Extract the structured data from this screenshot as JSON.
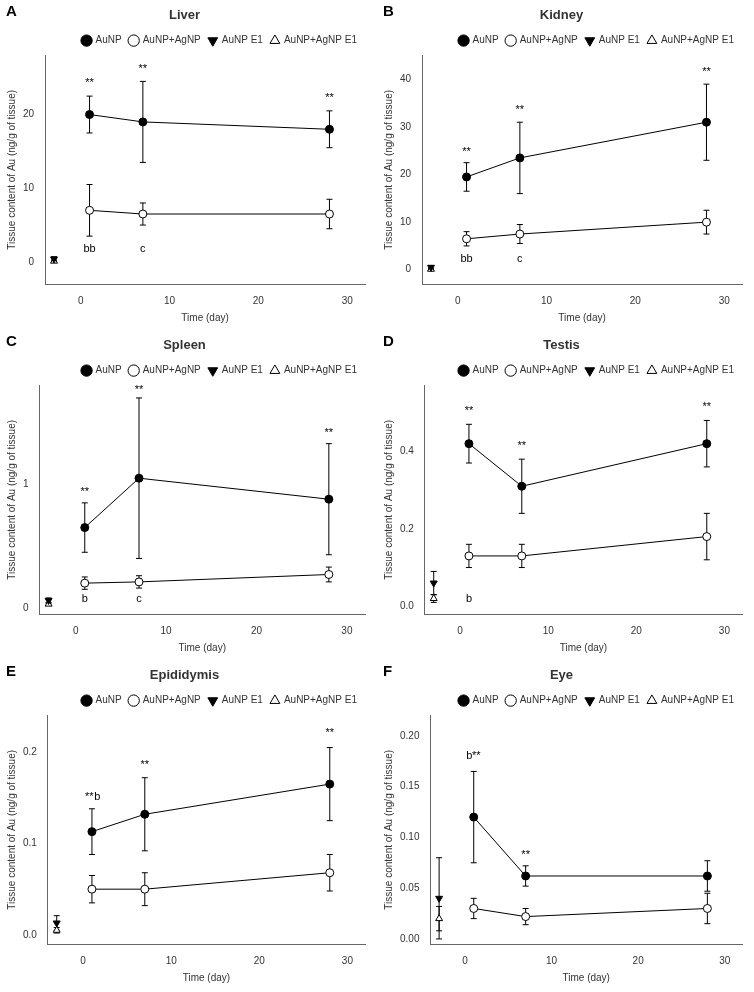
{
  "chart_data": [
    {
      "type": "line",
      "panel_label": "A",
      "title": "Liver",
      "xlabel": "Time (day)",
      "ylabel": "Tissue content of Au (ng/g of tissue)",
      "xlim": [
        -4,
        32
      ],
      "ylim": [
        -3,
        28
      ],
      "xticks": [
        0,
        10,
        20,
        30
      ],
      "yticks": [
        0,
        10,
        20
      ],
      "grid": false,
      "legend": "upper right",
      "series": [
        {
          "name": "AuNP",
          "x": [
            1,
            7,
            28
          ],
          "values": [
            20.0,
            19.0,
            18.0
          ],
          "yerr": [
            2.5,
            5.5,
            2.5
          ],
          "marker": "filled_circle",
          "line_style": "solid",
          "color": "#000000"
        },
        {
          "name": "AuNP+AgNP",
          "x": [
            1,
            7,
            28
          ],
          "values": [
            7.0,
            6.5,
            6.5
          ],
          "yerr": [
            3.5,
            1.5,
            2.0
          ],
          "marker": "open_circle",
          "line_style": "solid",
          "color": "#000000"
        },
        {
          "name": "AuNP E1",
          "x": [
            -3
          ],
          "values": [
            0.4
          ],
          "yerr": [
            0.3
          ],
          "marker": "filled_triangle_down",
          "line_style": "none",
          "color": "#000000"
        },
        {
          "name": "AuNP+AgNP E1",
          "x": [
            -3
          ],
          "values": [
            0.1
          ],
          "yerr": [
            0.15
          ],
          "marker": "open_triangle_up",
          "line_style": "none",
          "color": "#000000"
        }
      ],
      "annotations": [
        {
          "text": "**",
          "x": 1,
          "y": 23.5
        },
        {
          "text": "**",
          "x": 7,
          "y": 25.5
        },
        {
          "text": "**",
          "x": 28,
          "y": 21.5
        },
        {
          "text": "bb",
          "x": 1,
          "y": 1.0
        },
        {
          "text": "c",
          "x": 7,
          "y": 1.0
        }
      ]
    },
    {
      "type": "line",
      "panel_label": "B",
      "title": "Kidney",
      "xlabel": "Time (day)",
      "ylabel": "Tissue content of Au (ng/g of tissue)",
      "xlim": [
        -4,
        32
      ],
      "ylim": [
        -3,
        45
      ],
      "xticks": [
        0,
        10,
        20,
        30
      ],
      "yticks": [
        0,
        10,
        20,
        30,
        40
      ],
      "grid": false,
      "legend": "upper right",
      "series": [
        {
          "name": "AuNP",
          "x": [
            1,
            7,
            28
          ],
          "values": [
            19.5,
            23.5,
            31.0
          ],
          "yerr": [
            3.0,
            7.5,
            8.0
          ],
          "marker": "filled_circle",
          "line_style": "solid",
          "color": "#000000"
        },
        {
          "name": "AuNP+AgNP",
          "x": [
            1,
            7,
            28
          ],
          "values": [
            6.5,
            7.5,
            10.0
          ],
          "yerr": [
            1.5,
            2.0,
            2.5
          ],
          "marker": "open_circle",
          "line_style": "solid",
          "color": "#000000"
        },
        {
          "name": "AuNP E1",
          "x": [
            -3
          ],
          "values": [
            0.5
          ],
          "yerr": [
            0.4
          ],
          "marker": "filled_triangle_down",
          "line_style": "none",
          "color": "#000000"
        },
        {
          "name": "AuNP+AgNP E1",
          "x": [
            -3
          ],
          "values": [
            0.1
          ],
          "yerr": [
            0.2
          ],
          "marker": "open_triangle_up",
          "line_style": "none",
          "color": "#000000"
        }
      ],
      "annotations": [
        {
          "text": "**",
          "x": 1,
          "y": 23.5
        },
        {
          "text": "**",
          "x": 7,
          "y": 32.5
        },
        {
          "text": "**",
          "x": 28,
          "y": 40.5
        },
        {
          "text": "bb",
          "x": 1,
          "y": 1.0
        },
        {
          "text": "c",
          "x": 7,
          "y": 1.0
        }
      ]
    },
    {
      "type": "line",
      "panel_label": "C",
      "title": "Spleen",
      "xlabel": "Time (day)",
      "ylabel": "Tissue content of Au (ng/g of tissue)",
      "xlim": [
        -4,
        32
      ],
      "ylim": [
        -0.05,
        1.8
      ],
      "xticks": [
        0,
        10,
        20,
        30
      ],
      "yticks": [
        0,
        1
      ],
      "grid": false,
      "legend": "upper right",
      "series": [
        {
          "name": "AuNP",
          "x": [
            1,
            7,
            28
          ],
          "values": [
            0.65,
            1.05,
            0.88
          ],
          "yerr": [
            0.2,
            0.65,
            0.45
          ],
          "marker": "filled_circle",
          "line_style": "solid",
          "color": "#000000"
        },
        {
          "name": "AuNP+AgNP",
          "x": [
            1,
            7,
            28
          ],
          "values": [
            0.2,
            0.21,
            0.27
          ],
          "yerr": [
            0.05,
            0.05,
            0.06
          ],
          "marker": "open_circle",
          "line_style": "solid",
          "color": "#000000"
        },
        {
          "name": "AuNP E1",
          "x": [
            -3
          ],
          "values": [
            0.06
          ],
          "yerr": [
            0.02
          ],
          "marker": "filled_triangle_down",
          "line_style": "none",
          "color": "#000000"
        },
        {
          "name": "AuNP+AgNP E1",
          "x": [
            -3
          ],
          "values": [
            0.03
          ],
          "yerr": [
            0.01
          ],
          "marker": "open_triangle_up",
          "line_style": "none",
          "color": "#000000"
        }
      ],
      "annotations": [
        {
          "text": "**",
          "x": 1,
          "y": 0.89
        },
        {
          "text": "**",
          "x": 7,
          "y": 1.72
        },
        {
          "text": "**",
          "x": 28,
          "y": 1.37
        },
        {
          "text": "b",
          "x": 1,
          "y": 0.03
        },
        {
          "text": "c",
          "x": 7,
          "y": 0.03
        }
      ]
    },
    {
      "type": "line",
      "panel_label": "D",
      "title": "Testis",
      "xlabel": "Time (day)",
      "ylabel": "Tissue content of Au (ng/g of tissue)",
      "xlim": [
        -4,
        32
      ],
      "ylim": [
        -0.02,
        0.57
      ],
      "xticks": [
        0,
        10,
        20,
        30
      ],
      "yticks": [
        {
          "value": 0,
          "label": "0.0"
        },
        0.2,
        0.4
      ],
      "grid": false,
      "legend": "upper right",
      "series": [
        {
          "name": "AuNP",
          "x": [
            1,
            7,
            28
          ],
          "values": [
            0.42,
            0.31,
            0.42
          ],
          "yerr": [
            0.05,
            0.07,
            0.06
          ],
          "marker": "filled_circle",
          "line_style": "solid",
          "color": "#000000"
        },
        {
          "name": "AuNP+AgNP",
          "x": [
            1,
            7,
            28
          ],
          "values": [
            0.13,
            0.13,
            0.18
          ],
          "yerr": [
            0.03,
            0.03,
            0.06
          ],
          "marker": "open_circle",
          "line_style": "solid",
          "color": "#000000"
        },
        {
          "name": "AuNP E1",
          "x": [
            -3
          ],
          "values": [
            0.06
          ],
          "yerr": [
            0.03
          ],
          "marker": "filled_triangle_down",
          "line_style": "none",
          "color": "#000000"
        },
        {
          "name": "AuNP+AgNP E1",
          "x": [
            -3
          ],
          "values": [
            0.02
          ],
          "yerr": [
            0.01
          ],
          "marker": "open_triangle_up",
          "line_style": "none",
          "color": "#000000"
        }
      ],
      "annotations": [
        {
          "text": "**",
          "x": 1,
          "y": 0.49
        },
        {
          "text": "**",
          "x": 7,
          "y": 0.4
        },
        {
          "text": "**",
          "x": 28,
          "y": 0.5
        },
        {
          "text": "b",
          "x": 1,
          "y": 0.005
        }
      ]
    },
    {
      "type": "line",
      "panel_label": "E",
      "title": "Epididymis",
      "xlabel": "Time (day)",
      "ylabel": "Tissue content of Au (ng/g of tissue)",
      "xlim": [
        -4,
        32
      ],
      "ylim": [
        -0.01,
        0.24
      ],
      "xticks": [
        0,
        10,
        20,
        30
      ],
      "yticks": [
        {
          "value": 0,
          "label": "0.0"
        },
        0.1,
        0.2
      ],
      "grid": false,
      "legend": "upper right",
      "series": [
        {
          "name": "AuNP",
          "x": [
            1,
            7,
            28
          ],
          "values": [
            0.113,
            0.132,
            0.165
          ],
          "yerr": [
            0.025,
            0.04,
            0.04
          ],
          "marker": "filled_circle",
          "line_style": "solid",
          "color": "#000000"
        },
        {
          "name": "AuNP+AgNP",
          "x": [
            1,
            7,
            28
          ],
          "values": [
            0.05,
            0.05,
            0.068
          ],
          "yerr": [
            0.015,
            0.018,
            0.02
          ],
          "marker": "open_circle",
          "line_style": "solid",
          "color": "#000000"
        },
        {
          "name": "AuNP E1",
          "x": [
            -3
          ],
          "values": [
            0.013
          ],
          "yerr": [
            0.008
          ],
          "marker": "filled_triangle_down",
          "line_style": "none",
          "color": "#000000"
        },
        {
          "name": "AuNP+AgNP E1",
          "x": [
            -3
          ],
          "values": [
            0.005
          ],
          "yerr": [
            0.003
          ],
          "marker": "open_triangle_up",
          "line_style": "none",
          "color": "#000000"
        }
      ],
      "annotations": [
        {
          "text": "**",
          "x": 0.7,
          "y": 0.145
        },
        {
          "text": "b",
          "x": 1.6,
          "y": 0.145
        },
        {
          "text": "**",
          "x": 7,
          "y": 0.18
        },
        {
          "text": "**",
          "x": 28,
          "y": 0.215
        }
      ]
    },
    {
      "type": "line",
      "panel_label": "F",
      "title": "Eye",
      "xlabel": "Time (day)",
      "ylabel": "Tissue content of Au (ng/g of tissue)",
      "xlim": [
        -4,
        32
      ],
      "ylim": [
        -0.005,
        0.22
      ],
      "xticks": [
        0,
        10,
        20,
        30
      ],
      "yticks": [
        {
          "value": 0,
          "label": "0.00"
        },
        0.05,
        {
          "value": 0.1,
          "label": "0.10"
        },
        0.15,
        {
          "value": 0.2,
          "label": "0.20"
        }
      ],
      "grid": false,
      "legend": "upper right",
      "series": [
        {
          "name": "AuNP",
          "x": [
            1,
            7,
            28
          ],
          "values": [
            0.12,
            0.062,
            0.062
          ],
          "yerr": [
            0.045,
            0.01,
            0.015
          ],
          "marker": "filled_circle",
          "line_style": "solid",
          "color": "#000000"
        },
        {
          "name": "AuNP+AgNP",
          "x": [
            1,
            7,
            28
          ],
          "values": [
            0.03,
            0.022,
            0.03
          ],
          "yerr": [
            0.01,
            0.008,
            0.015
          ],
          "marker": "open_circle",
          "line_style": "solid",
          "color": "#000000"
        },
        {
          "name": "AuNP E1",
          "x": [
            -3
          ],
          "values": [
            0.04
          ],
          "yerr": [
            0.04
          ],
          "marker": "filled_triangle_down",
          "line_style": "none",
          "color": "#000000"
        },
        {
          "name": "AuNP+AgNP E1",
          "x": [
            -3
          ],
          "values": [
            0.02
          ],
          "yerr": [
            0.012
          ],
          "marker": "open_triangle_up",
          "line_style": "none",
          "color": "#000000"
        }
      ],
      "annotations": [
        {
          "text": "b",
          "x": 0.5,
          "y": 0.175
        },
        {
          "text": "**",
          "x": 1.3,
          "y": 0.175
        },
        {
          "text": "**",
          "x": 7,
          "y": 0.077
        }
      ]
    }
  ]
}
